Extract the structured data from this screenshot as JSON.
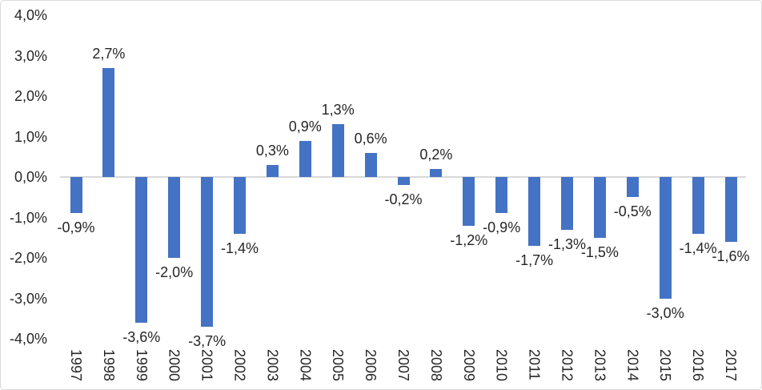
{
  "chart_data": {
    "type": "bar",
    "title": "",
    "xlabel": "",
    "ylabel": "",
    "categories": [
      "1997",
      "1998",
      "1999",
      "2000",
      "2001",
      "2002",
      "2003",
      "2004",
      "2005",
      "2006",
      "2007",
      "2008",
      "2009",
      "2010",
      "2011",
      "2012",
      "2013",
      "2014",
      "2015",
      "2016",
      "2017"
    ],
    "values": [
      -0.9,
      2.7,
      -3.6,
      -2.0,
      -3.7,
      -1.4,
      0.3,
      0.9,
      1.3,
      0.6,
      -0.2,
      0.2,
      -1.2,
      -0.9,
      -1.7,
      -1.3,
      -1.5,
      -0.5,
      -3.0,
      -1.4,
      -1.6
    ],
    "data_labels": [
      "-0,9%",
      "2,7%",
      "-3,6%",
      "-2,0%",
      "-3,7%",
      "-1,4%",
      "0,3%",
      "0,9%",
      "1,3%",
      "0,6%",
      "-0,2%",
      "0,2%",
      "-1,2%",
      "-0,9%",
      "-1,7%",
      "-1,3%",
      "-1,5%",
      "-0,5%",
      "-3,0%",
      "-1,4%",
      "-1,6%"
    ],
    "y_axis": {
      "min": -4,
      "max": 4,
      "step": 1,
      "tick_values": [
        4,
        3,
        2,
        1,
        0,
        -1,
        -2,
        -3,
        -4
      ],
      "tick_labels": [
        "4,0%",
        "3,0%",
        "2,0%",
        "1,0%",
        "0,0%",
        "-1,0%",
        "-2,0%",
        "-3,0%",
        "-4,0%"
      ]
    },
    "grid": false,
    "legend": false,
    "bar_color": "#4472C4",
    "axis_line_color": "#D9D9D9",
    "text_color": "#262626",
    "background_color": "#FFFFFF",
    "decimal_separator": ","
  }
}
